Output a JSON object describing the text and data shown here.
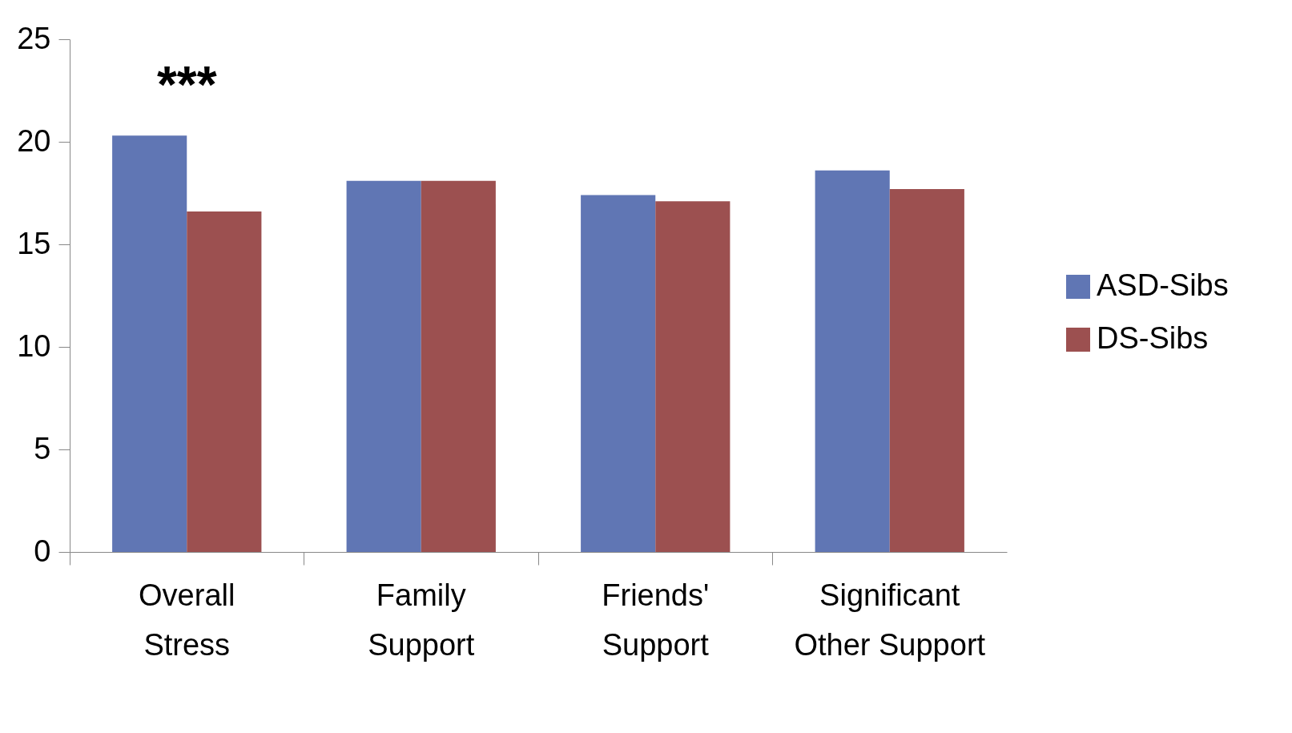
{
  "chart_data": {
    "type": "bar",
    "categories": [
      "Overall Stress",
      "Family Support",
      "Friends' Support",
      "Significant Other Support"
    ],
    "series": [
      {
        "name": "ASD-Sibs",
        "color": "#6076b4",
        "values": [
          20.3,
          18.1,
          17.4,
          18.6
        ]
      },
      {
        "name": "DS-Sibs",
        "color": "#9c5050",
        "values": [
          16.6,
          18.1,
          17.1,
          17.7
        ]
      }
    ],
    "ylim": [
      0,
      25
    ],
    "yticks": [
      0,
      5,
      10,
      15,
      20,
      25
    ],
    "grid": false,
    "legend": "right",
    "annotations": [
      "***"
    ]
  }
}
